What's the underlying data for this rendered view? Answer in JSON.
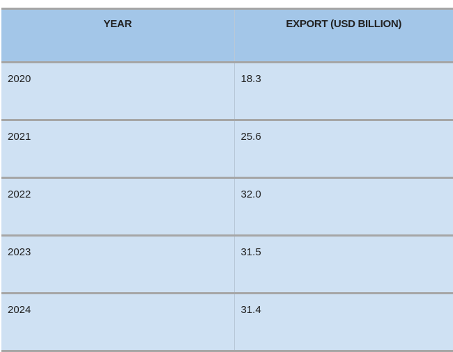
{
  "table": {
    "header": [
      "YEAR",
      "EXPORT (USD BILLION)"
    ],
    "rows": [
      [
        "2020",
        "18.3"
      ],
      [
        "2021",
        "25.6"
      ],
      [
        "2022",
        "32.0"
      ],
      [
        "2023",
        "31.5"
      ],
      [
        "2024",
        "31.4"
      ]
    ]
  }
}
